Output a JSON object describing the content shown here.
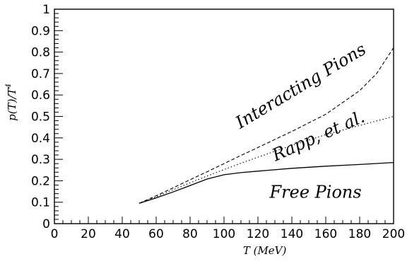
{
  "chart_data": {
    "type": "line",
    "xlabel": "T (MeV)",
    "ylabel": "p(T)/T",
    "ylabel_sup": "4",
    "xlim": [
      0,
      200
    ],
    "ylim": [
      0,
      1
    ],
    "xticks": [
      0,
      20,
      40,
      60,
      80,
      100,
      120,
      140,
      160,
      180,
      200
    ],
    "yticks": [
      0,
      0.1,
      0.2,
      0.3,
      0.4,
      0.5,
      0.6,
      0.7,
      0.8,
      0.9,
      1
    ],
    "series": [
      {
        "name": "Free Pions",
        "style": "solid",
        "x": [
          50,
          60,
          70,
          80,
          90,
          100,
          110,
          120,
          140,
          160,
          180,
          200
        ],
        "y": [
          0.095,
          0.12,
          0.148,
          0.178,
          0.208,
          0.228,
          0.238,
          0.245,
          0.258,
          0.268,
          0.276,
          0.285
        ]
      },
      {
        "name": "Rapp, et al.",
        "style": "dotted",
        "x": [
          50,
          60,
          70,
          80,
          90,
          100,
          110,
          120,
          140,
          160,
          180,
          200
        ],
        "y": [
          0.095,
          0.125,
          0.158,
          0.19,
          0.222,
          0.252,
          0.282,
          0.31,
          0.365,
          0.415,
          0.458,
          0.5
        ]
      },
      {
        "name": "Interacting Pions",
        "style": "dashed",
        "x": [
          50,
          60,
          70,
          80,
          90,
          100,
          110,
          120,
          140,
          160,
          180,
          190,
          200
        ],
        "y": [
          0.095,
          0.13,
          0.167,
          0.205,
          0.242,
          0.28,
          0.318,
          0.355,
          0.43,
          0.51,
          0.62,
          0.7,
          0.82
        ]
      }
    ],
    "annotations": [
      {
        "text": "Interacting Pions",
        "x": 147,
        "y": 0.62,
        "angle": -31
      },
      {
        "text": "Rapp, et al.",
        "x": 157,
        "y": 0.385,
        "angle": -24
      },
      {
        "text": "Free Pions",
        "x": 154,
        "y": 0.12,
        "angle": 0
      }
    ]
  }
}
